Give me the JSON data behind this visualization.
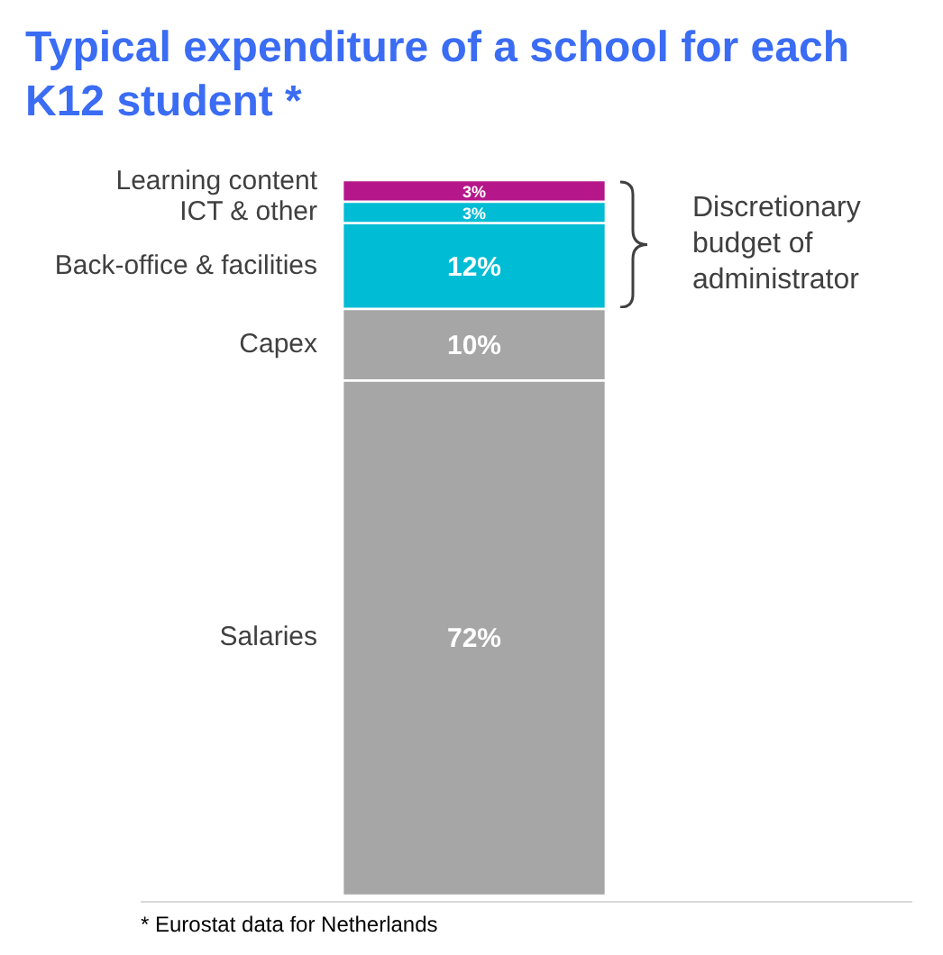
{
  "chart_data": {
    "type": "bar",
    "title": "Typical expenditure of a school for each K12 student *",
    "stacked": true,
    "categories": [
      null
    ],
    "series": [
      {
        "name": "Salaries",
        "color": "#a6a6a6",
        "values": [
          72
        ],
        "value_labels": [
          "72%"
        ]
      },
      {
        "name": "Capex",
        "color": "#a6a6a6",
        "values": [
          10
        ],
        "value_labels": [
          "10%"
        ]
      },
      {
        "name": "Back-office & facilities",
        "color": "#00bcd4",
        "values": [
          12
        ],
        "value_labels": [
          "12%"
        ]
      },
      {
        "name": "ICT & other",
        "color": "#00bcd4",
        "values": [
          3
        ],
        "value_labels": [
          "3%"
        ]
      },
      {
        "name": "Learning content",
        "color": "#b5178a",
        "values": [
          3
        ],
        "value_labels": [
          "3%"
        ]
      }
    ],
    "annotations": [
      "Discretionary budget of administrator",
      "* Eurostat data for Netherlands"
    ],
    "legend": false
  }
}
